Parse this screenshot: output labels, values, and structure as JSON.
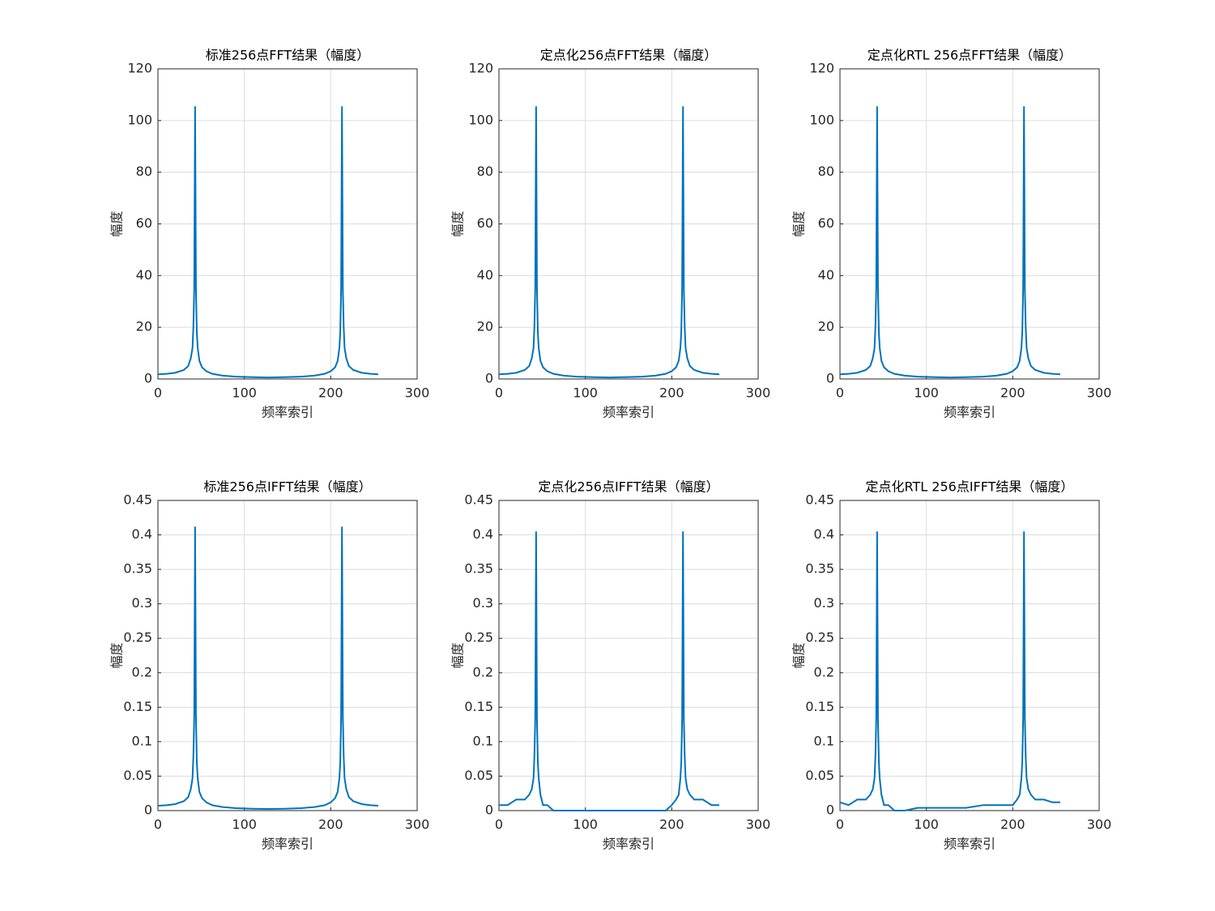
{
  "chart_data": [
    {
      "type": "line",
      "title": "标准256点FFT结果（幅度）",
      "x_label": "频率索引",
      "y_label": "幅度",
      "xlim": [
        0,
        300
      ],
      "xticks": [
        0,
        100,
        200,
        300
      ],
      "ylim": [
        0,
        120
      ],
      "yticks": [
        0,
        20,
        40,
        60,
        80,
        100,
        120
      ],
      "grid": true,
      "x": [
        0,
        10,
        20,
        30,
        35,
        38,
        40,
        41,
        42,
        43,
        44,
        45,
        46,
        48,
        51,
        56,
        63,
        75,
        90,
        110,
        128,
        146,
        166,
        181,
        193,
        200,
        205,
        208,
        210,
        211,
        212,
        213,
        214,
        215,
        216,
        218,
        221,
        226,
        236,
        246,
        255
      ],
      "series": [
        {
          "color": "#0072bd",
          "values": [
            1.8,
            2.0,
            2.4,
            3.5,
            5,
            8,
            12,
            20,
            35,
            105.5,
            35,
            18,
            12,
            7,
            4.5,
            3,
            2,
            1.3,
            0.9,
            0.7,
            0.6,
            0.7,
            0.9,
            1.3,
            2,
            3,
            4.5,
            7,
            12,
            18,
            35,
            105.5,
            35,
            20,
            12,
            8,
            5,
            3.5,
            2.4,
            2.0,
            1.8
          ]
        }
      ]
    },
    {
      "type": "line",
      "title": "定点化256点FFT结果（幅度）",
      "x_label": "频率索引",
      "y_label": "幅度",
      "xlim": [
        0,
        300
      ],
      "xticks": [
        0,
        100,
        200,
        300
      ],
      "ylim": [
        0,
        120
      ],
      "yticks": [
        0,
        20,
        40,
        60,
        80,
        100,
        120
      ],
      "grid": true,
      "x": [
        0,
        10,
        20,
        30,
        35,
        38,
        40,
        41,
        42,
        43,
        44,
        45,
        46,
        48,
        51,
        56,
        63,
        75,
        90,
        110,
        128,
        146,
        166,
        181,
        193,
        200,
        205,
        208,
        210,
        211,
        212,
        213,
        214,
        215,
        216,
        218,
        221,
        226,
        236,
        246,
        255
      ],
      "series": [
        {
          "color": "#0072bd",
          "values": [
            1.8,
            2.0,
            2.4,
            3.5,
            5,
            8,
            12,
            20,
            35,
            105.5,
            35,
            18,
            12,
            7,
            4.5,
            3,
            2,
            1.3,
            0.9,
            0.7,
            0.6,
            0.7,
            0.9,
            1.3,
            2,
            3,
            4.5,
            7,
            12,
            18,
            35,
            105.5,
            35,
            20,
            12,
            8,
            5,
            3.5,
            2.4,
            2.0,
            1.8
          ]
        }
      ]
    },
    {
      "type": "line",
      "title": "定点化RTL 256点FFT结果（幅度）",
      "x_label": "频率索引",
      "y_label": "幅度",
      "xlim": [
        0,
        300
      ],
      "xticks": [
        0,
        100,
        200,
        300
      ],
      "ylim": [
        0,
        120
      ],
      "yticks": [
        0,
        20,
        40,
        60,
        80,
        100,
        120
      ],
      "grid": true,
      "x": [
        0,
        10,
        20,
        30,
        35,
        38,
        40,
        41,
        42,
        43,
        44,
        45,
        46,
        48,
        51,
        56,
        63,
        75,
        90,
        110,
        128,
        146,
        166,
        181,
        193,
        200,
        205,
        208,
        210,
        211,
        212,
        213,
        214,
        215,
        216,
        218,
        221,
        226,
        236,
        246,
        255
      ],
      "series": [
        {
          "color": "#0072bd",
          "values": [
            1.8,
            2.0,
            2.4,
            3.5,
            5,
            8,
            12,
            20,
            35,
            105.5,
            35,
            18,
            12,
            7,
            4.5,
            3,
            2,
            1.3,
            0.9,
            0.7,
            0.6,
            0.7,
            0.9,
            1.3,
            2,
            3,
            4.5,
            7,
            12,
            18,
            35,
            105.5,
            35,
            20,
            12,
            8,
            5,
            3.5,
            2.4,
            2.0,
            1.8
          ]
        }
      ]
    },
    {
      "type": "line",
      "title": "标准256点IFFT结果（幅度）",
      "x_label": "频率索引",
      "y_label": "幅度",
      "xlim": [
        0,
        300
      ],
      "xticks": [
        0,
        100,
        200,
        300
      ],
      "ylim": [
        0,
        0.45
      ],
      "yticks": [
        0,
        0.05,
        0.1,
        0.15,
        0.2,
        0.25,
        0.3,
        0.35,
        0.4,
        0.45
      ],
      "grid": true,
      "x": [
        0,
        10,
        20,
        30,
        35,
        38,
        40,
        41,
        42,
        43,
        44,
        45,
        46,
        48,
        51,
        56,
        63,
        75,
        90,
        110,
        128,
        146,
        166,
        181,
        193,
        200,
        205,
        208,
        210,
        211,
        212,
        213,
        214,
        215,
        216,
        218,
        221,
        226,
        236,
        246,
        255
      ],
      "series": [
        {
          "color": "#0072bd",
          "values": [
            0.007,
            0.0078,
            0.0094,
            0.0137,
            0.0195,
            0.031,
            0.047,
            0.078,
            0.137,
            0.412,
            0.137,
            0.07,
            0.047,
            0.027,
            0.018,
            0.012,
            0.0078,
            0.0051,
            0.0035,
            0.0027,
            0.0023,
            0.0027,
            0.0035,
            0.0051,
            0.0078,
            0.012,
            0.018,
            0.027,
            0.047,
            0.07,
            0.137,
            0.412,
            0.137,
            0.078,
            0.047,
            0.031,
            0.0195,
            0.0137,
            0.0094,
            0.0078,
            0.007
          ]
        }
      ]
    },
    {
      "type": "line",
      "title": "定点化256点IFFT结果（幅度）",
      "x_label": "频率索引",
      "y_label": "幅度",
      "xlim": [
        0,
        300
      ],
      "xticks": [
        0,
        100,
        200,
        300
      ],
      "ylim": [
        0,
        0.45
      ],
      "yticks": [
        0,
        0.05,
        0.1,
        0.15,
        0.2,
        0.25,
        0.3,
        0.35,
        0.4,
        0.45
      ],
      "grid": true,
      "x": [
        0,
        10,
        20,
        30,
        35,
        38,
        40,
        41,
        42,
        43,
        44,
        45,
        46,
        48,
        51,
        56,
        63,
        75,
        90,
        110,
        128,
        146,
        166,
        181,
        193,
        200,
        205,
        208,
        210,
        211,
        212,
        213,
        214,
        215,
        216,
        218,
        221,
        226,
        236,
        246,
        255
      ],
      "series": [
        {
          "color": "#0072bd",
          "values": [
            0.008,
            0.008,
            0.016,
            0.016,
            0.023,
            0.031,
            0.047,
            0.078,
            0.133,
            0.405,
            0.133,
            0.07,
            0.047,
            0.023,
            0.008,
            0.008,
            0,
            0,
            0,
            0,
            0,
            0,
            0,
            0,
            0,
            0.008,
            0.016,
            0.023,
            0.047,
            0.07,
            0.133,
            0.405,
            0.133,
            0.078,
            0.047,
            0.031,
            0.023,
            0.016,
            0.016,
            0.008,
            0.008
          ]
        }
      ]
    },
    {
      "type": "line",
      "title": "定点化RTL 256点IFFT结果（幅度）",
      "x_label": "频率索引",
      "y_label": "幅度",
      "xlim": [
        0,
        300
      ],
      "xticks": [
        0,
        100,
        200,
        300
      ],
      "ylim": [
        0,
        0.45
      ],
      "yticks": [
        0,
        0.05,
        0.1,
        0.15,
        0.2,
        0.25,
        0.3,
        0.35,
        0.4,
        0.45
      ],
      "grid": true,
      "x": [
        0,
        10,
        20,
        30,
        35,
        38,
        40,
        41,
        42,
        43,
        44,
        45,
        46,
        48,
        51,
        56,
        63,
        75,
        90,
        110,
        128,
        146,
        166,
        181,
        193,
        200,
        205,
        208,
        210,
        211,
        212,
        213,
        214,
        215,
        216,
        218,
        221,
        226,
        236,
        246,
        255
      ],
      "series": [
        {
          "color": "#0072bd",
          "values": [
            0.012,
            0.008,
            0.016,
            0.016,
            0.023,
            0.031,
            0.047,
            0.078,
            0.133,
            0.405,
            0.133,
            0.07,
            0.047,
            0.023,
            0.008,
            0.008,
            0,
            0,
            0.004,
            0.004,
            0.004,
            0.004,
            0.008,
            0.008,
            0.008,
            0.008,
            0.016,
            0.023,
            0.047,
            0.07,
            0.133,
            0.405,
            0.133,
            0.078,
            0.047,
            0.031,
            0.023,
            0.016,
            0.016,
            0.012,
            0.012
          ]
        }
      ]
    }
  ]
}
